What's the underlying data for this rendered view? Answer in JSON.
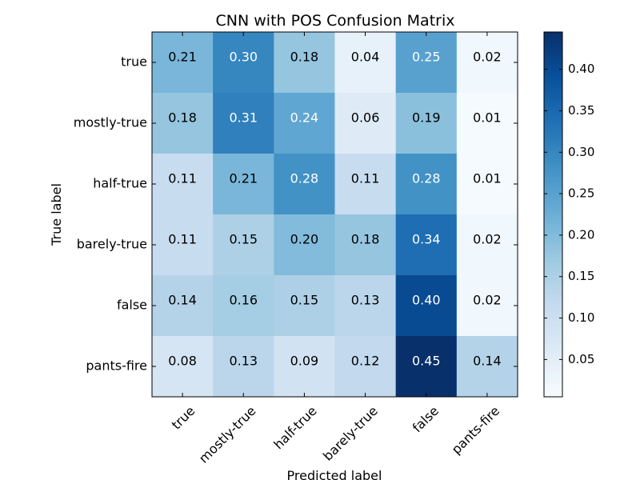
{
  "chart_data": {
    "type": "heatmap",
    "title": "CNN with POS Confusion Matrix",
    "xlabel": "Predicted label",
    "ylabel": "True label",
    "x_categories": [
      "true",
      "mostly-true",
      "half-true",
      "barely-true",
      "false",
      "pants-fire"
    ],
    "y_categories": [
      "true",
      "mostly-true",
      "half-true",
      "barely-true",
      "false",
      "pants-fire"
    ],
    "values": [
      [
        0.21,
        0.3,
        0.18,
        0.04,
        0.25,
        0.02
      ],
      [
        0.18,
        0.31,
        0.24,
        0.06,
        0.19,
        0.01
      ],
      [
        0.11,
        0.21,
        0.28,
        0.11,
        0.28,
        0.01
      ],
      [
        0.11,
        0.15,
        0.2,
        0.18,
        0.34,
        0.02
      ],
      [
        0.14,
        0.16,
        0.15,
        0.13,
        0.4,
        0.02
      ],
      [
        0.08,
        0.13,
        0.09,
        0.12,
        0.45,
        0.14
      ]
    ],
    "value_labels": [
      [
        "0.21",
        "0.30",
        "0.18",
        "0.04",
        "0.25",
        "0.02"
      ],
      [
        "0.18",
        "0.31",
        "0.24",
        "0.06",
        "0.19",
        "0.01"
      ],
      [
        "0.11",
        "0.21",
        "0.28",
        "0.11",
        "0.28",
        "0.01"
      ],
      [
        "0.11",
        "0.15",
        "0.20",
        "0.18",
        "0.34",
        "0.02"
      ],
      [
        "0.14",
        "0.16",
        "0.15",
        "0.13",
        "0.40",
        "0.02"
      ],
      [
        "0.08",
        "0.13",
        "0.09",
        "0.12",
        "0.45",
        "0.14"
      ]
    ],
    "colorbar": {
      "range": [
        0.005,
        0.445
      ],
      "ticks": [
        0.05,
        0.1,
        0.15,
        0.2,
        0.25,
        0.3,
        0.35,
        0.4
      ],
      "tick_labels": [
        "0.05",
        "0.10",
        "0.15",
        "0.20",
        "0.25",
        "0.30",
        "0.35",
        "0.40"
      ]
    },
    "colormap": "Blues",
    "colormap_stops": [
      "#f7fbff",
      "#deebf7",
      "#c6dbef",
      "#9ecae1",
      "#6baed6",
      "#4292c6",
      "#2171b5",
      "#08519c",
      "#08306b"
    ],
    "text_color_dark": "#000000",
    "text_color_light": "#ffffff",
    "grid": false
  }
}
